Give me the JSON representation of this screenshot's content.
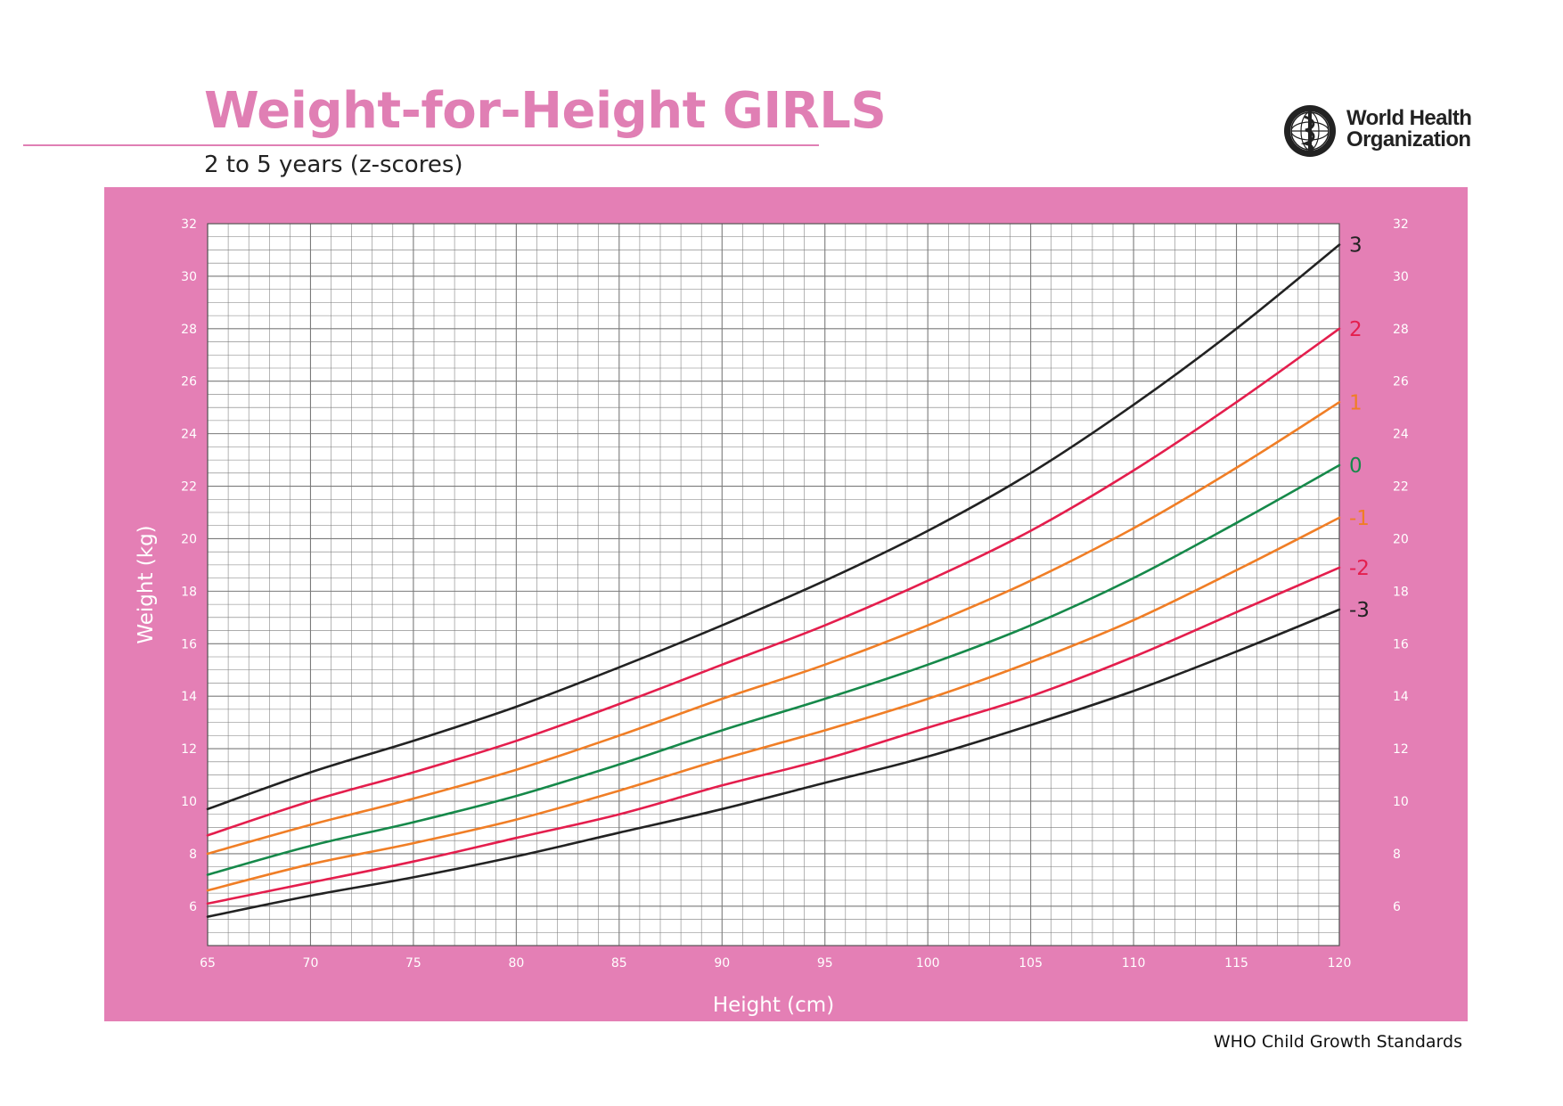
{
  "header": {
    "title": "Weight-for-Height GIRLS",
    "subtitle": "2 to 5 years (z-scores)",
    "logo_text_line1": "World Health",
    "logo_text_line2": "Organization"
  },
  "footer": {
    "text": "WHO Child Growth Standards"
  },
  "colors": {
    "panel": "#e47fb5",
    "plot_bg": "#ffffff",
    "grid": "#7a7a7a",
    "title": "#e07fb4",
    "black_line": "#222222",
    "red_line": "#e41e4d",
    "orange_line": "#f07e26",
    "green_line": "#16894a"
  },
  "chart_data": {
    "type": "line",
    "title": "Weight-for-Height GIRLS",
    "subtitle": "2 to 5 years (z-scores)",
    "xlabel": "Height (cm)",
    "ylabel": "Weight (kg)",
    "xlim": [
      65,
      120
    ],
    "ylim": [
      4.5,
      32
    ],
    "x_ticks": [
      "65",
      "70",
      "75",
      "80",
      "85",
      "90",
      "95",
      "100",
      "105",
      "110",
      "115",
      "120"
    ],
    "y_ticks": [
      "6",
      "8",
      "10",
      "12",
      "14",
      "16",
      "18",
      "20",
      "22",
      "24",
      "26",
      "28",
      "30",
      "32"
    ],
    "grid": true,
    "x": [
      65,
      70,
      75,
      80,
      85,
      90,
      95,
      100,
      105,
      110,
      115,
      120
    ],
    "series": [
      {
        "name": "3",
        "color": "#222222",
        "values": [
          9.7,
          11.1,
          12.3,
          13.6,
          15.1,
          16.7,
          18.4,
          20.3,
          22.5,
          25.1,
          28.0,
          31.2
        ]
      },
      {
        "name": "2",
        "color": "#e41e4d",
        "values": [
          8.7,
          10.0,
          11.1,
          12.3,
          13.7,
          15.2,
          16.7,
          18.4,
          20.3,
          22.6,
          25.2,
          28.0
        ]
      },
      {
        "name": "1",
        "color": "#f07e26",
        "values": [
          8.0,
          9.1,
          10.1,
          11.2,
          12.5,
          13.9,
          15.2,
          16.7,
          18.4,
          20.4,
          22.7,
          25.2
        ]
      },
      {
        "name": "0",
        "color": "#16894a",
        "values": [
          7.2,
          8.3,
          9.2,
          10.2,
          11.4,
          12.7,
          13.9,
          15.2,
          16.7,
          18.5,
          20.6,
          22.8
        ]
      },
      {
        "name": "-1",
        "color": "#f07e26",
        "values": [
          6.6,
          7.6,
          8.4,
          9.3,
          10.4,
          11.6,
          12.7,
          13.9,
          15.3,
          16.9,
          18.8,
          20.8
        ]
      },
      {
        "name": "-2",
        "color": "#e41e4d",
        "values": [
          6.1,
          6.9,
          7.7,
          8.6,
          9.5,
          10.6,
          11.6,
          12.8,
          14.0,
          15.5,
          17.2,
          18.9
        ]
      },
      {
        "name": "-3",
        "color": "#222222",
        "values": [
          5.6,
          6.4,
          7.1,
          7.9,
          8.8,
          9.7,
          10.7,
          11.7,
          12.9,
          14.2,
          15.7,
          17.3
        ]
      }
    ]
  }
}
